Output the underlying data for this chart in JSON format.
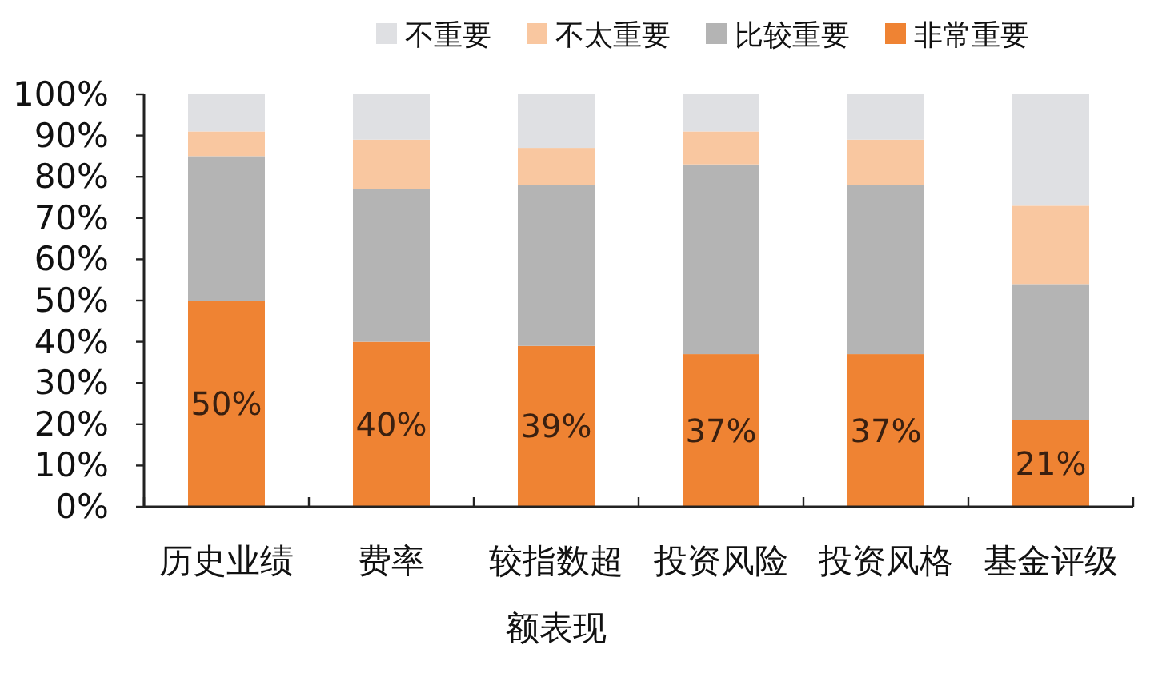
{
  "chart_data": {
    "type": "bar",
    "stacked": true,
    "legend": "top",
    "categories": [
      "历史业绩",
      "费率",
      "较指数超额表现",
      "投资风险",
      "投资风格",
      "基金评级"
    ],
    "ylim": [
      0,
      100
    ],
    "yticks": [
      {
        "value": 0,
        "label": "0%"
      },
      {
        "value": 10,
        "label": "10%"
      },
      {
        "value": 20,
        "label": "20%"
      },
      {
        "value": 30,
        "label": "30%"
      },
      {
        "value": 40,
        "label": "40%"
      },
      {
        "value": 50,
        "label": "50%"
      },
      {
        "value": 60,
        "label": "60%"
      },
      {
        "value": 70,
        "label": "70%"
      },
      {
        "value": 80,
        "label": "80%"
      },
      {
        "value": 90,
        "label": "90%"
      },
      {
        "value": 100,
        "label": "100%"
      }
    ],
    "series": [
      {
        "name": "非常重要",
        "color": "#ef8333",
        "values": [
          50,
          40,
          39,
          37,
          37,
          21
        ],
        "value_labels": [
          "50%",
          "40%",
          "39%",
          "37%",
          "37%",
          "21%"
        ]
      },
      {
        "name": "比较重要",
        "color": "#b4b4b4",
        "values": [
          35,
          37,
          39,
          46,
          41,
          33
        ]
      },
      {
        "name": "不太重要",
        "color": "#f9c7a0",
        "values": [
          6,
          12,
          9,
          8,
          11,
          19
        ]
      },
      {
        "name": "不重要",
        "color": "#dfe0e3",
        "values": [
          9,
          11,
          13,
          9,
          11,
          27
        ]
      }
    ]
  }
}
